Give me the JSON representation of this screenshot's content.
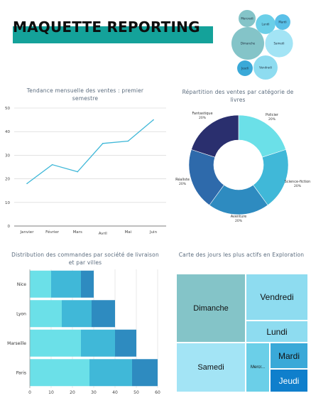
{
  "page": {
    "title": "MAQUETTE REPORTING"
  },
  "colors": {
    "accent": "#14a29a",
    "navy": "#2a2f6e",
    "blue_dark": "#2e6aab",
    "blue": "#2e8bc0",
    "cyan": "#40b8d8",
    "cyan_light": "#6be0e8",
    "teal_grey": "#84c4c8"
  },
  "bubble_chart": {
    "type": "bubble",
    "items": [
      {
        "label": "Mercredi",
        "value": 6,
        "color": "#84c4c8"
      },
      {
        "label": "Lundi",
        "value": 8,
        "color": "#6bcfe8"
      },
      {
        "label": "Mardi",
        "value": 5,
        "color": "#5ac0e8"
      },
      {
        "label": "Dimanche",
        "value": 22,
        "color": "#84c4c8"
      },
      {
        "label": "Samedi",
        "value": 16,
        "color": "#a3e4f5"
      },
      {
        "label": "Jeudi",
        "value": 5,
        "color": "#3aa9d8"
      },
      {
        "label": "Vendredi",
        "value": 12,
        "color": "#8edcf0"
      }
    ]
  },
  "chart_data": [
    {
      "type": "line",
      "title": "Tendance mensuelle des ventes : premier semestre",
      "categories": [
        "Janvier",
        "Février",
        "Mars",
        "Avril",
        "Mai",
        "Juin"
      ],
      "values": [
        18,
        26,
        23,
        35,
        36,
        45
      ],
      "ylim": [
        0,
        50
      ],
      "yticks": [
        0,
        10,
        20,
        30,
        40,
        50
      ],
      "grid": true,
      "color": "#40b8d8"
    },
    {
      "type": "pie",
      "title": "Répartition des ventes par catégorie de livres",
      "donut": true,
      "slices": [
        {
          "label": "Policier",
          "percent": "20%",
          "value": 20,
          "color": "#6be0e8"
        },
        {
          "label": "Science-fiction",
          "percent": "20%",
          "value": 20,
          "color": "#40b8d8"
        },
        {
          "label": "Aventure",
          "percent": "20%",
          "value": 20,
          "color": "#2e8bc0"
        },
        {
          "label": "Réaliste",
          "percent": "20%",
          "value": 20,
          "color": "#2e6aab"
        },
        {
          "label": "Fantastique",
          "percent": "20%",
          "value": 20,
          "color": "#2a2f6e"
        }
      ]
    },
    {
      "type": "bar",
      "orientation": "horizontal",
      "stacked": true,
      "title": "Distribution des commandes par société de livraison et par villes",
      "categories": [
        "Nice",
        "Lyon",
        "Marseille",
        "Paris"
      ],
      "series": [
        {
          "values": [
            10,
            15,
            24,
            28
          ],
          "color": "#6be0e8"
        },
        {
          "values": [
            14,
            14,
            16,
            20
          ],
          "color": "#40b8d8"
        },
        {
          "values": [
            6,
            11,
            10,
            12
          ],
          "color": "#2e8bc0"
        }
      ],
      "xlim": [
        0,
        60
      ],
      "xticks": [
        0,
        10,
        20,
        30,
        40,
        50,
        60
      ],
      "grid": true
    },
    {
      "type": "treemap",
      "title": "Carte des jours les plus actifs en Exploration",
      "cells": [
        {
          "label": "Dimanche",
          "value": 22,
          "color": "#84c4c8"
        },
        {
          "label": "Vendredi",
          "value": 12,
          "color": "#8edcf0"
        },
        {
          "label": "Lundi",
          "value": 5,
          "color": "#8edcf0"
        },
        {
          "label": "Samedi",
          "value": 16,
          "color": "#a3e4f5"
        },
        {
          "label": "Mercr...",
          "value": 5,
          "color": "#6bcfe8"
        },
        {
          "label": "Mardi",
          "value": 4,
          "color": "#3aa9d8"
        },
        {
          "label": "Jeudi",
          "value": 4,
          "color": "#0f7fcc"
        }
      ]
    }
  ]
}
